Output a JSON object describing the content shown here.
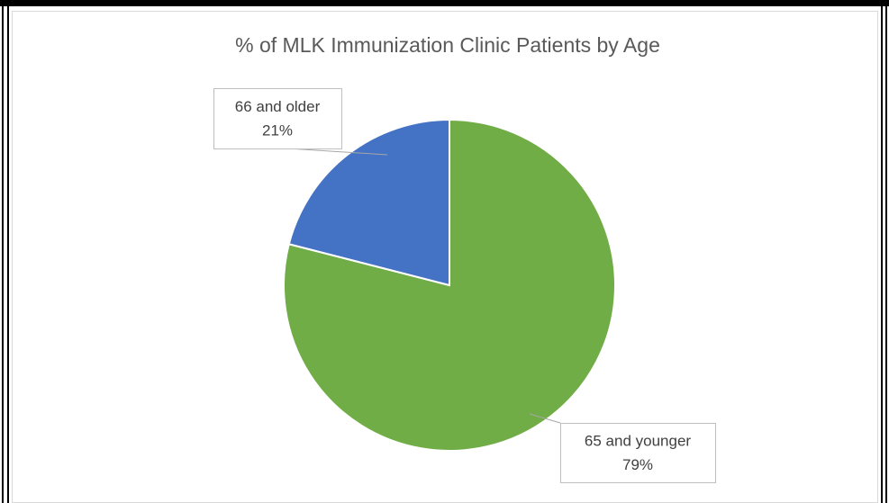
{
  "chart_data": {
    "type": "pie",
    "title": "% of MLK Immunization Clinic Patients by Age",
    "categories": [
      "65 and younger",
      "66 and older"
    ],
    "values": [
      79,
      21
    ],
    "value_labels": [
      "79%",
      "21%"
    ],
    "colors": [
      "#70ad47",
      "#4472c4"
    ]
  }
}
